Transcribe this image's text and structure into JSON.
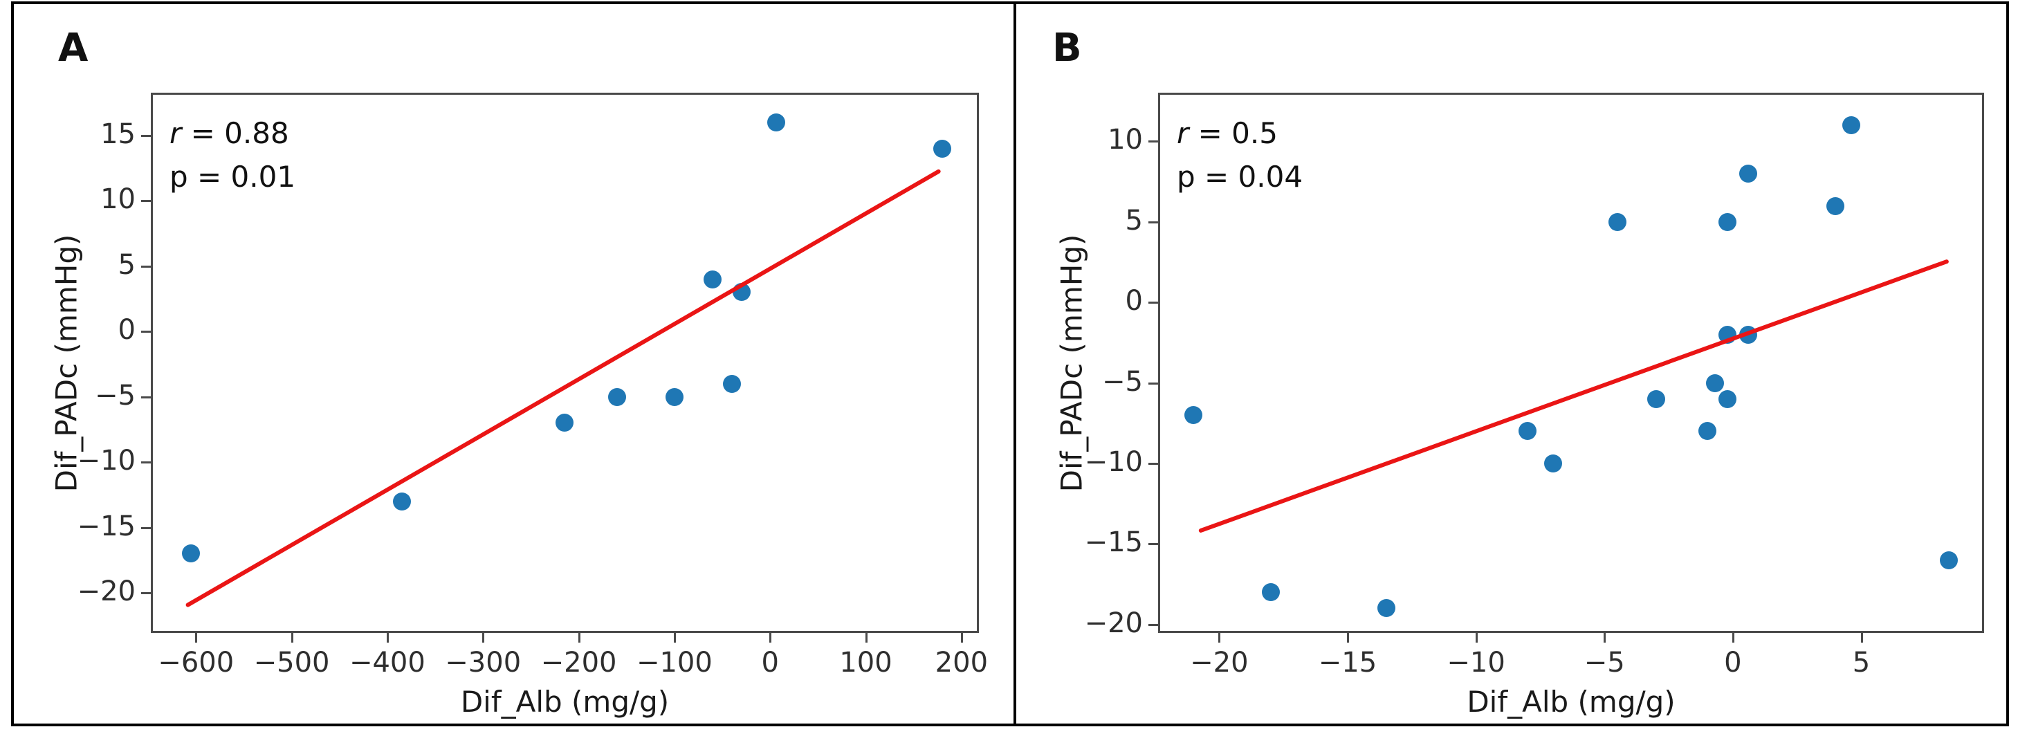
{
  "figure": {
    "background": "#ffffff",
    "border_color": "#000000",
    "point_color": "#1f77b4",
    "trend_color": "#ea1515"
  },
  "chart_data": [
    {
      "type": "scatter",
      "panel_label": "A",
      "title": "",
      "xlabel": "Dif_Alb (mg/g)",
      "ylabel": "Dif_PADc (mmHg)",
      "annotation": {
        "r_symbol": "r",
        "r_rest": " = 0.88",
        "p_line": "p = 0.01"
      },
      "xlim": [
        -645,
        216
      ],
      "ylim": [
        -22.9,
        18.1
      ],
      "xticks": [
        -600,
        -500,
        -400,
        -300,
        -200,
        -100,
        0,
        100,
        200
      ],
      "yticks": [
        15,
        10,
        5,
        0,
        -5,
        -10,
        -15,
        -20
      ],
      "grid": false,
      "points": [
        [
          -605,
          -17
        ],
        [
          -385,
          -13
        ],
        [
          -215,
          -7
        ],
        [
          -160,
          -5
        ],
        [
          -100,
          -5
        ],
        [
          -60,
          4
        ],
        [
          -30,
          3
        ],
        [
          -40,
          -4
        ],
        [
          6,
          16
        ],
        [
          180,
          14
        ]
      ],
      "trendline": {
        "x1": -610,
        "y1": -21,
        "x2": 178,
        "y2": 12.3
      },
      "point_color": "#1f77b4",
      "line_color": "#ea1515"
    },
    {
      "type": "scatter",
      "panel_label": "B",
      "title": "",
      "xlabel": "Dif_Alb (mg/g)",
      "ylabel": "Dif_PADc (mmHg)",
      "annotation": {
        "r_symbol": "r",
        "r_rest": " = 0.5",
        "p_line": "p = 0.04"
      },
      "xlim": [
        -22.3,
        9.7
      ],
      "ylim": [
        -20.4,
        12.9
      ],
      "xticks": [
        -20,
        -15,
        -10,
        -5,
        0,
        5
      ],
      "yticks": [
        10,
        5,
        0,
        -5,
        -10,
        -15,
        -20
      ],
      "grid": false,
      "points": [
        [
          -21,
          -7
        ],
        [
          -18,
          -18
        ],
        [
          -13.5,
          -19
        ],
        [
          -8,
          -8
        ],
        [
          -7,
          -10
        ],
        [
          -4.5,
          5
        ],
        [
          -3,
          -6
        ],
        [
          -1,
          -8
        ],
        [
          -0.7,
          -5
        ],
        [
          -0.2,
          -6
        ],
        [
          -0.2,
          -2
        ],
        [
          0.6,
          -2
        ],
        [
          -0.2,
          5
        ],
        [
          0.6,
          8
        ],
        [
          4,
          6
        ],
        [
          4.6,
          11
        ],
        [
          8.4,
          -16
        ]
      ],
      "trendline": {
        "x1": -20.8,
        "y1": -14.2,
        "x2": 8.4,
        "y2": 2.6
      },
      "point_color": "#1f77b4",
      "line_color": "#ea1515"
    }
  ]
}
